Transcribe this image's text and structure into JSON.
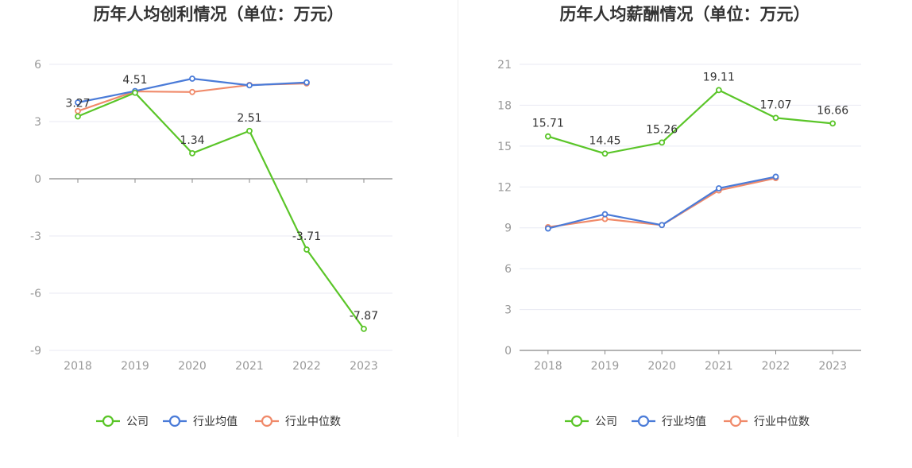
{
  "colors": {
    "company": "#5ac528",
    "industry_avg": "#4a7bd8",
    "industry_median": "#f08a6a",
    "grid": "#e8eaf3",
    "axis": "#888888"
  },
  "chart_data": [
    {
      "type": "line",
      "title": "历年人均创利情况（单位：万元）",
      "categories": [
        "2018",
        "2019",
        "2020",
        "2021",
        "2022",
        "2023"
      ],
      "yticks": [
        "6",
        "3",
        "0",
        "-3",
        "-6",
        "-9"
      ],
      "ylim": [
        -9,
        6
      ],
      "grid": true,
      "legend_position": "bottom",
      "series": [
        {
          "name": "公司",
          "values": [
            3.27,
            4.51,
            1.34,
            2.51,
            -3.71,
            -7.87
          ],
          "labels": [
            "3.27",
            "4.51",
            "1.34",
            "2.51",
            "-3.71",
            "-7.87"
          ]
        },
        {
          "name": "行业均值",
          "values": [
            4.0,
            4.6,
            5.25,
            4.9,
            5.05,
            null
          ]
        },
        {
          "name": "行业中位数",
          "values": [
            3.55,
            4.58,
            4.55,
            4.92,
            5.0,
            null
          ]
        }
      ]
    },
    {
      "type": "line",
      "title": "历年人均薪酬情况（单位：万元）",
      "categories": [
        "2018",
        "2019",
        "2020",
        "2021",
        "2022",
        "2023"
      ],
      "yticks": [
        "21",
        "18",
        "15",
        "12",
        "9",
        "6",
        "3",
        "0"
      ],
      "ylim": [
        0,
        21
      ],
      "grid": true,
      "legend_position": "bottom",
      "series": [
        {
          "name": "公司",
          "values": [
            15.71,
            14.45,
            15.26,
            19.11,
            17.07,
            16.66
          ],
          "labels": [
            "15.71",
            "14.45",
            "15.26",
            "19.11",
            "17.07",
            "16.66"
          ]
        },
        {
          "name": "行业均值",
          "values": [
            8.95,
            10.0,
            9.2,
            11.9,
            12.75,
            null
          ]
        },
        {
          "name": "行业中位数",
          "values": [
            9.05,
            9.65,
            9.2,
            11.75,
            12.65,
            null
          ]
        }
      ]
    }
  ]
}
